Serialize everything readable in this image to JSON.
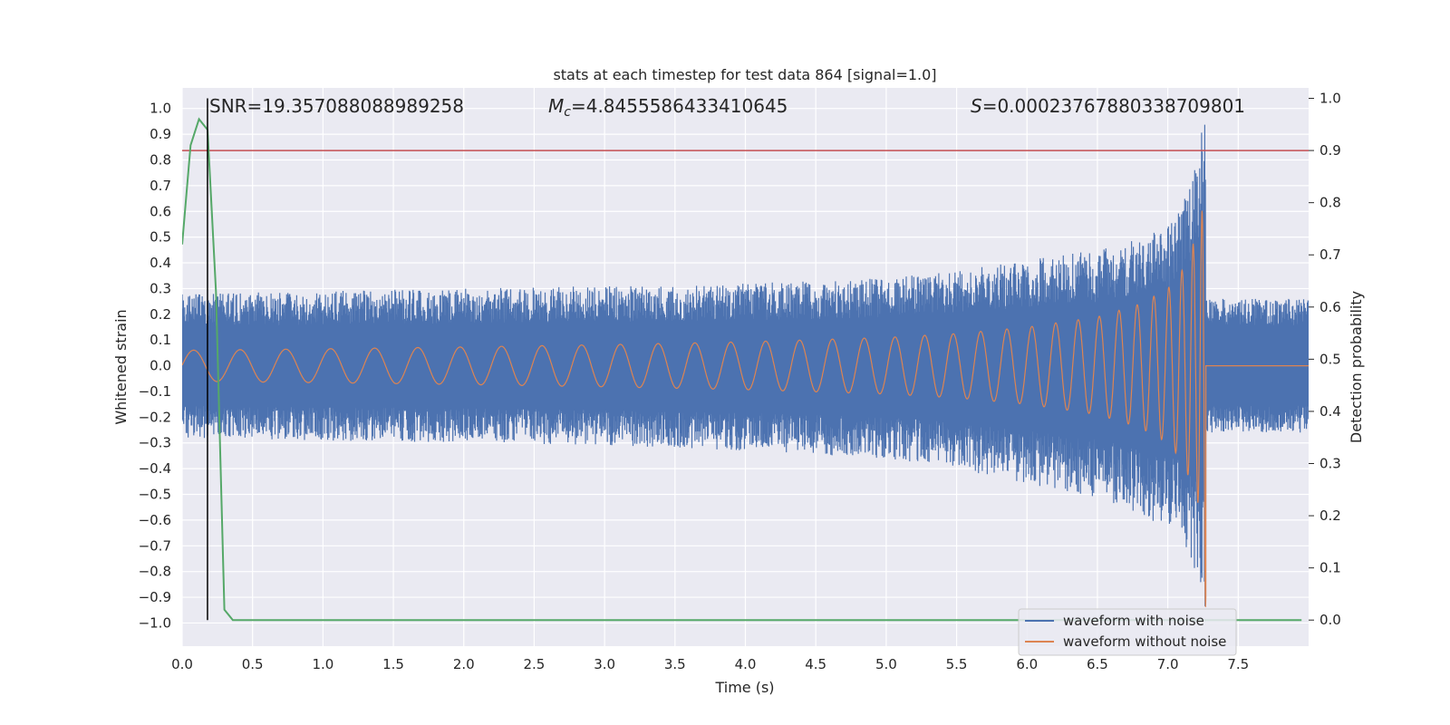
{
  "chart_data": {
    "type": "line",
    "title": "stats at each timestep for test data 864 [signal=1.0]",
    "xlabel": "Time (s)",
    "ylabel_left": "Whitened strain",
    "ylabel_right": "Detection probability",
    "xlim": [
      0.0,
      8.0
    ],
    "ylim_left": [
      -1.09,
      1.08
    ],
    "ylim_right": [
      -0.05,
      1.02
    ],
    "x_ticks": [
      0.0,
      0.5,
      1.0,
      1.5,
      2.0,
      2.5,
      3.0,
      3.5,
      4.0,
      4.5,
      5.0,
      5.5,
      6.0,
      6.5,
      7.0,
      7.5
    ],
    "x_tick_labels": [
      "0.0",
      "0.5",
      "1.0",
      "1.5",
      "2.0",
      "2.5",
      "3.0",
      "3.5",
      "4.0",
      "4.5",
      "5.0",
      "5.5",
      "6.0",
      "6.5",
      "7.0",
      "7.5"
    ],
    "y_ticks_left": [
      1.0,
      0.9,
      0.8,
      0.7,
      0.6,
      0.5,
      0.4,
      0.3,
      0.2,
      0.1,
      0.0,
      -0.1,
      -0.2,
      -0.3,
      -0.4,
      -0.5,
      -0.6,
      -0.7,
      -0.8,
      -0.9,
      -1.0
    ],
    "y_tick_labels_left": [
      "1.0",
      "0.9",
      "0.8",
      "0.7",
      "0.6",
      "0.5",
      "0.4",
      "0.3",
      "0.2",
      "0.1",
      "0.0",
      "−0.1",
      "−0.2",
      "−0.3",
      "−0.4",
      "−0.5",
      "−0.6",
      "−0.7",
      "−0.8",
      "−0.9",
      "−1.0"
    ],
    "y_ticks_right": [
      1.0,
      0.9,
      0.8,
      0.7,
      0.6,
      0.5,
      0.4,
      0.3,
      0.2,
      0.1,
      0.0
    ],
    "y_tick_labels_right": [
      "1.0",
      "0.9",
      "0.8",
      "0.7",
      "0.6",
      "0.5",
      "0.4",
      "0.3",
      "0.2",
      "0.1",
      "0.0"
    ],
    "grid": true,
    "legend_position": "bottom-right",
    "annotations": {
      "snr": "SNR=19.357088088989258",
      "mc_symbol": "M",
      "mc_sub": "c",
      "mc_value": "=4.8455586433410645",
      "s_symbol": "S",
      "s_value": "=0.00023767880338709801"
    },
    "series": [
      {
        "name": "waveform with noise",
        "color": "#4c72b0",
        "signal_end": 7.27,
        "data_end": 8.0,
        "envelope": {
          "x": [
            0.0,
            1.0,
            2.0,
            3.0,
            4.0,
            5.0,
            5.5,
            6.0,
            6.5,
            6.8,
            7.0,
            7.1,
            7.2,
            7.25,
            7.27
          ],
          "upper": [
            0.28,
            0.29,
            0.3,
            0.31,
            0.32,
            0.34,
            0.37,
            0.41,
            0.45,
            0.5,
            0.55,
            0.62,
            0.78,
            0.95,
            1.0
          ],
          "lower": [
            -0.28,
            -0.29,
            -0.3,
            -0.31,
            -0.33,
            -0.36,
            -0.4,
            -0.46,
            -0.52,
            -0.58,
            -0.63,
            -0.68,
            -0.8,
            -0.9,
            -0.98
          ]
        },
        "post_band": [
          -0.26,
          0.26
        ]
      },
      {
        "name": "waveform without noise",
        "color": "#dd8452",
        "signal_end": 7.27,
        "envelope": {
          "x": [
            0.0,
            1.0,
            2.0,
            3.0,
            4.0,
            5.0,
            5.5,
            6.0,
            6.5,
            6.8,
            7.0,
            7.1,
            7.2,
            7.25,
            7.27
          ],
          "amplitude": [
            0.06,
            0.066,
            0.073,
            0.082,
            0.093,
            0.11,
            0.125,
            0.15,
            0.19,
            0.24,
            0.3,
            0.37,
            0.5,
            0.62,
            0.98
          ]
        },
        "post_value": 0.0
      },
      {
        "name": "detection probability",
        "color": "#55a868",
        "axis": "right",
        "x": [
          0.0,
          0.06,
          0.12,
          0.18,
          0.24,
          0.3,
          0.36,
          0.42,
          1.0,
          2.0,
          3.0,
          4.0,
          5.0,
          6.0,
          7.0,
          7.95
        ],
        "y": [
          0.72,
          0.91,
          0.96,
          0.94,
          0.63,
          0.02,
          0.0,
          0.0,
          0.0,
          0.0,
          0.0,
          0.0,
          0.0,
          0.0,
          0.0,
          0.0
        ]
      }
    ],
    "threshold_line": {
      "axis": "right",
      "value": 0.9,
      "color": "#c44e52"
    },
    "marker_line": {
      "x": 0.18,
      "color": "#000000"
    }
  }
}
